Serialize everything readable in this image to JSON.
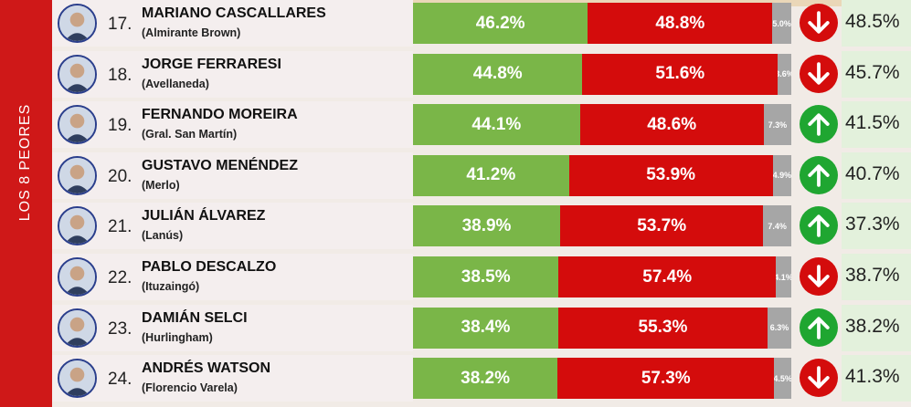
{
  "side_label": "LOS 8 PEORES",
  "colors": {
    "positive": "#7ab648",
    "negative": "#d40c0c",
    "no_response": "#a6a6a6",
    "up": "#1fa631",
    "down": "#d40c0c"
  },
  "chart_data": {
    "type": "bar",
    "stacked": true,
    "title": "",
    "xlim": [
      0,
      100
    ],
    "categories": [
      "MARIANO CASCALLARES",
      "JORGE FERRARESI",
      "FERNANDO MOREIRA",
      "GUSTAVO MENÉNDEZ",
      "JULIÁN ÁLVAREZ",
      "PABLO DESCALZO",
      "DAMIÁN SELCI",
      "ANDRÉS WATSON"
    ],
    "series": [
      {
        "values": [
          46.2,
          44.8,
          44.1,
          41.2,
          38.9,
          38.5,
          38.4,
          38.2
        ]
      },
      {
        "values": [
          48.8,
          51.6,
          48.6,
          53.9,
          53.7,
          57.4,
          55.3,
          57.3
        ]
      },
      {
        "values": [
          5.0,
          3.6,
          7.3,
          4.9,
          7.4,
          4.1,
          6.3,
          4.5
        ]
      }
    ]
  },
  "rows": [
    {
      "rank": "17.",
      "name": "MARIANO CASCALLARES",
      "place": "(Almirante Brown)",
      "pos": "46.2%",
      "neg": "48.8%",
      "nr": "5.0%",
      "trend": "down",
      "trend_icon": "arrow-down-icon",
      "prev": "48.5%"
    },
    {
      "rank": "18.",
      "name": "JORGE FERRARESI",
      "place": "(Avellaneda)",
      "pos": "44.8%",
      "neg": "51.6%",
      "nr": "3.6%",
      "trend": "down",
      "trend_icon": "arrow-down-icon",
      "prev": "45.7%"
    },
    {
      "rank": "19.",
      "name": "FERNANDO MOREIRA",
      "place": "(Gral. San Martín)",
      "pos": "44.1%",
      "neg": "48.6%",
      "nr": "7.3%",
      "trend": "up",
      "trend_icon": "arrow-up-icon",
      "prev": "41.5%"
    },
    {
      "rank": "20.",
      "name": "GUSTAVO MENÉNDEZ",
      "place": "(Merlo)",
      "pos": "41.2%",
      "neg": "53.9%",
      "nr": "4.9%",
      "trend": "up",
      "trend_icon": "arrow-up-icon",
      "prev": "40.7%"
    },
    {
      "rank": "21.",
      "name": "JULIÁN ÁLVAREZ",
      "place": "(Lanús)",
      "pos": "38.9%",
      "neg": "53.7%",
      "nr": "7.4%",
      "trend": "up",
      "trend_icon": "arrow-up-icon",
      "prev": "37.3%"
    },
    {
      "rank": "22.",
      "name": "PABLO DESCALZO",
      "place": "(Ituzaingó)",
      "pos": "38.5%",
      "neg": "57.4%",
      "nr": "4.1%",
      "trend": "down",
      "trend_icon": "arrow-down-icon",
      "prev": "38.7%"
    },
    {
      "rank": "23.",
      "name": "DAMIÁN SELCI",
      "place": "(Hurlingham)",
      "pos": "38.4%",
      "neg": "55.3%",
      "nr": "6.3%",
      "trend": "up",
      "trend_icon": "arrow-up-icon",
      "prev": "38.2%"
    },
    {
      "rank": "24.",
      "name": "ANDRÉS WATSON",
      "place": "(Florencio Varela)",
      "pos": "38.2%",
      "neg": "57.3%",
      "nr": "4.5%",
      "trend": "down",
      "trend_icon": "arrow-down-icon",
      "prev": "41.3%"
    }
  ]
}
